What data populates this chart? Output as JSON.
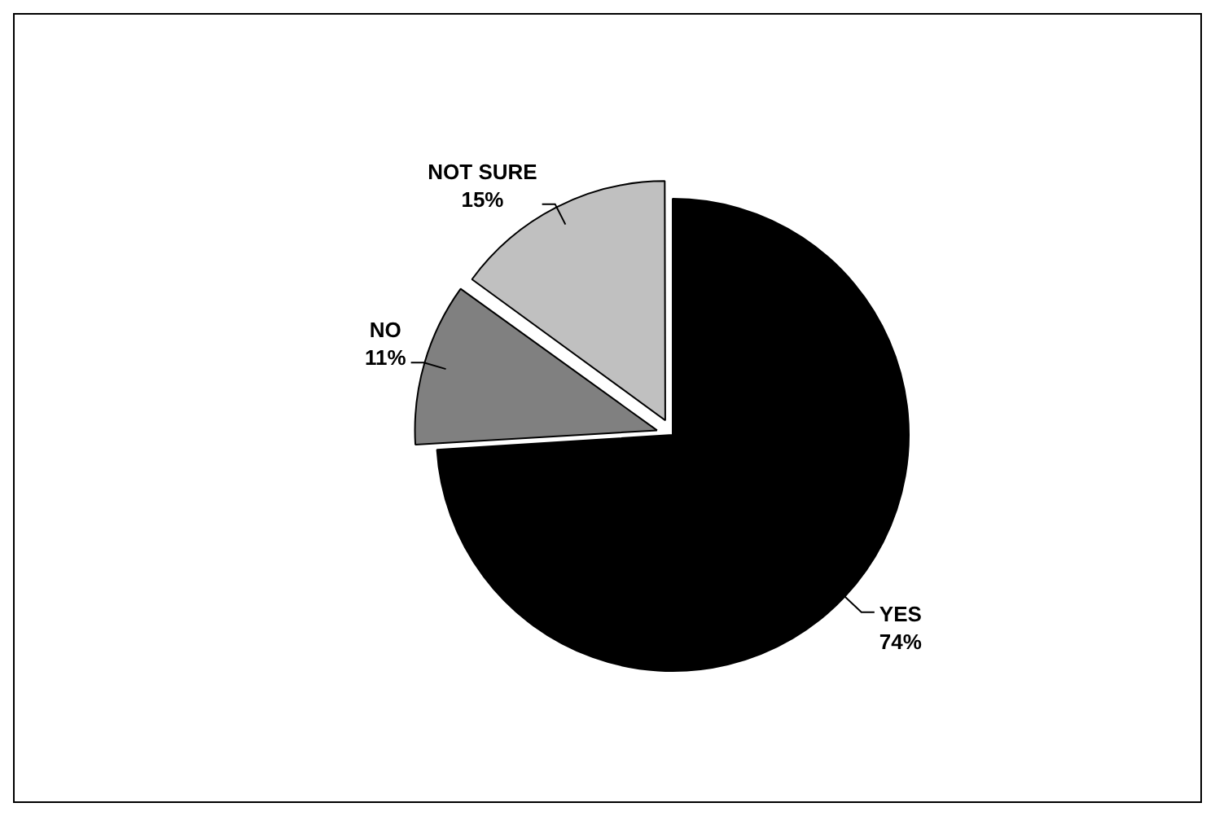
{
  "chart_data": {
    "type": "pie",
    "categories": [
      "YES",
      "NO",
      "NOT SURE"
    ],
    "values": [
      74,
      11,
      15
    ],
    "colors": [
      "#000000",
      "#808080",
      "#c0c0c0"
    ],
    "value_labels": [
      "74%",
      "11%",
      "15%"
    ],
    "legend": false
  }
}
